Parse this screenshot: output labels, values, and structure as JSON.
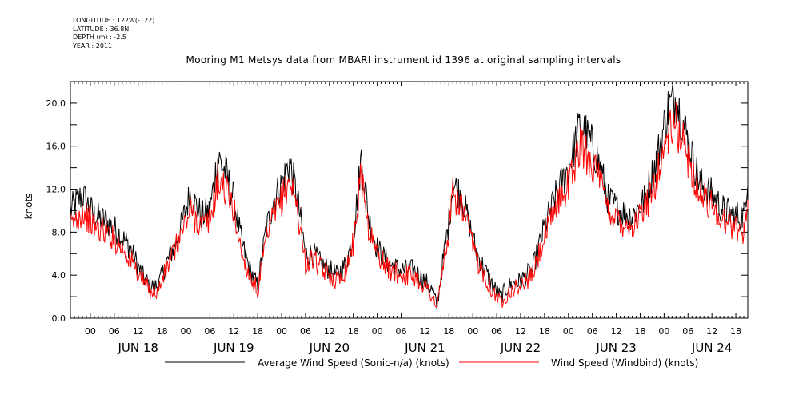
{
  "meta": {
    "longitude": "LONGITUDE : 122W(-122)",
    "latitude": "LATITUDE : 36.8N",
    "depth": "DEPTH (m) : -2.5",
    "year": "YEAR : 2011"
  },
  "chart_data": {
    "type": "line",
    "title": "Mooring M1 Metsys data from MBARI instrument id 1396 at original sampling intervals",
    "xlabel": "",
    "ylabel": "knots",
    "ylim": [
      0,
      22
    ],
    "yticks": [
      0,
      4,
      8,
      12,
      16,
      20
    ],
    "ytick_labels": [
      "0.0",
      "4.0",
      "8.0",
      "12.0",
      "16.0",
      "20.0"
    ],
    "xlim_hours": [
      -5,
      165
    ],
    "hour_ticks": [
      "00",
      "06",
      "12",
      "18",
      "00",
      "06",
      "12",
      "18",
      "00",
      "06",
      "12",
      "18",
      "00",
      "06",
      "12",
      "18",
      "00",
      "06",
      "12",
      "18",
      "00",
      "06",
      "12",
      "18",
      "00",
      "06",
      "12",
      "18"
    ],
    "day_labels": [
      "JUN 18",
      "JUN 19",
      "JUN 20",
      "JUN 21",
      "JUN 22",
      "JUN 23",
      "JUN 24"
    ],
    "grid": false,
    "legend": "bottom",
    "series": [
      {
        "name": "Average Wind Speed (Sonic-n/a) (knots)",
        "color": "#000000",
        "points": [
          [
            "JUN 17 19:00",
            10.0
          ],
          [
            "JUN 17 22:00",
            11.5
          ],
          [
            "JUN 18 01:00",
            9.5
          ],
          [
            "JUN 18 04:00",
            9.0
          ],
          [
            "JUN 18 07:00",
            8.0
          ],
          [
            "JUN 18 10:00",
            6.5
          ],
          [
            "JUN 18 13:00",
            4.0
          ],
          [
            "JUN 18 15:00",
            3.0
          ],
          [
            "JUN 18 17:00",
            3.0
          ],
          [
            "JUN 18 19:00",
            5.0
          ],
          [
            "JUN 18 22:00",
            7.5
          ],
          [
            "JUN 19 01:00",
            11.5
          ],
          [
            "JUN 19 04:00",
            9.5
          ],
          [
            "JUN 19 06:00",
            10.0
          ],
          [
            "JUN 19 08:00",
            15.0
          ],
          [
            "JUN 19 10:00",
            13.5
          ],
          [
            "JUN 19 12:00",
            11.0
          ],
          [
            "JUN 19 14:00",
            7.0
          ],
          [
            "JUN 19 16:00",
            4.5
          ],
          [
            "JUN 19 18:00",
            3.0
          ],
          [
            "JUN 19 20:00",
            8.0
          ],
          [
            "JUN 19 22:00",
            11.0
          ],
          [
            "JUN 20 00:00",
            12.5
          ],
          [
            "JUN 20 02:00",
            14.5
          ],
          [
            "JUN 20 04:00",
            11.0
          ],
          [
            "JUN 20 06:00",
            6.0
          ],
          [
            "JUN 20 08:00",
            6.0
          ],
          [
            "JUN 20 10:00",
            5.0
          ],
          [
            "JUN 20 12:00",
            4.5
          ],
          [
            "JUN 20 14:00",
            4.0
          ],
          [
            "JUN 20 16:00",
            5.0
          ],
          [
            "JUN 20 18:00",
            7.5
          ],
          [
            "JUN 20 20:00",
            15.0
          ],
          [
            "JUN 20 22:00",
            9.0
          ],
          [
            "JUN 21 00:00",
            6.5
          ],
          [
            "JUN 21 03:00",
            5.0
          ],
          [
            "JUN 21 06:00",
            4.5
          ],
          [
            "JUN 21 09:00",
            4.5
          ],
          [
            "JUN 21 12:00",
            3.5
          ],
          [
            "JUN 21 14:00",
            2.5
          ],
          [
            "JUN 21 15:00",
            1.0
          ],
          [
            "JUN 21 16:00",
            4.0
          ],
          [
            "JUN 21 18:00",
            9.0
          ],
          [
            "JUN 21 19:00",
            12.5
          ],
          [
            "JUN 21 21:00",
            11.5
          ],
          [
            "JUN 21 23:00",
            9.0
          ],
          [
            "JUN 22 01:00",
            6.0
          ],
          [
            "JUN 22 03:00",
            4.5
          ],
          [
            "JUN 22 05:00",
            3.0
          ],
          [
            "JUN 22 07:00",
            2.0
          ],
          [
            "JUN 22 09:00",
            3.0
          ],
          [
            "JUN 22 12:00",
            3.5
          ],
          [
            "JUN 22 15:00",
            4.5
          ],
          [
            "JUN 22 18:00",
            8.5
          ],
          [
            "JUN 22 21:00",
            11.5
          ],
          [
            "JUN 23 00:00",
            14.0
          ],
          [
            "JUN 23 03:00",
            18.0
          ],
          [
            "JUN 23 06:00",
            16.0
          ],
          [
            "JUN 23 08:00",
            14.0
          ],
          [
            "JUN 23 10:00",
            11.0
          ],
          [
            "JUN 23 13:00",
            10.0
          ],
          [
            "JUN 23 16:00",
            9.5
          ],
          [
            "JUN 23 19:00",
            11.0
          ],
          [
            "JUN 23 22:00",
            14.5
          ],
          [
            "JUN 24 01:00",
            19.5
          ],
          [
            "JUN 24 03:00",
            20.5
          ],
          [
            "JUN 24 06:00",
            16.5
          ],
          [
            "JUN 24 09:00",
            12.5
          ],
          [
            "JUN 24 12:00",
            11.5
          ],
          [
            "JUN 24 15:00",
            10.0
          ],
          [
            "JUN 24 18:00",
            9.5
          ],
          [
            "JUN 24 20:00",
            9.5
          ],
          [
            "JUN 24 21:00",
            13.5
          ]
        ]
      },
      {
        "name": "Wind Speed (Windbird) (knots)",
        "color": "#ff0000",
        "points": [
          [
            "JUN 17 19:00",
            8.5
          ],
          [
            "JUN 17 22:00",
            10.0
          ],
          [
            "JUN 18 01:00",
            8.5
          ],
          [
            "JUN 18 04:00",
            8.0
          ],
          [
            "JUN 18 07:00",
            7.0
          ],
          [
            "JUN 18 10:00",
            5.5
          ],
          [
            "JUN 18 13:00",
            3.5
          ],
          [
            "JUN 18 15:00",
            2.5
          ],
          [
            "JUN 18 17:00",
            2.5
          ],
          [
            "JUN 18 19:00",
            4.5
          ],
          [
            "JUN 18 22:00",
            7.0
          ],
          [
            "JUN 19 01:00",
            10.0
          ],
          [
            "JUN 19 04:00",
            8.5
          ],
          [
            "JUN 19 06:00",
            9.0
          ],
          [
            "JUN 19 08:00",
            13.0
          ],
          [
            "JUN 19 10:00",
            12.0
          ],
          [
            "JUN 19 12:00",
            10.0
          ],
          [
            "JUN 19 14:00",
            6.0
          ],
          [
            "JUN 19 16:00",
            4.0
          ],
          [
            "JUN 19 18:00",
            2.5
          ],
          [
            "JUN 19 20:00",
            7.0
          ],
          [
            "JUN 19 22:00",
            9.5
          ],
          [
            "JUN 20 00:00",
            11.0
          ],
          [
            "JUN 20 02:00",
            13.0
          ],
          [
            "JUN 20 04:00",
            10.0
          ],
          [
            "JUN 20 06:00",
            5.0
          ],
          [
            "JUN 20 08:00",
            5.5
          ],
          [
            "JUN 20 10:00",
            4.5
          ],
          [
            "JUN 20 12:00",
            4.0
          ],
          [
            "JUN 20 14:00",
            3.5
          ],
          [
            "JUN 20 16:00",
            4.5
          ],
          [
            "JUN 20 18:00",
            7.0
          ],
          [
            "JUN 20 20:00",
            13.5
          ],
          [
            "JUN 20 22:00",
            8.0
          ],
          [
            "JUN 21 00:00",
            6.0
          ],
          [
            "JUN 21 03:00",
            4.5
          ],
          [
            "JUN 21 06:00",
            4.0
          ],
          [
            "JUN 21 09:00",
            4.0
          ],
          [
            "JUN 21 12:00",
            3.0
          ],
          [
            "JUN 21 14:00",
            2.0
          ],
          [
            "JUN 21 15:00",
            0.8
          ],
          [
            "JUN 21 16:00",
            3.5
          ],
          [
            "JUN 21 18:00",
            8.0
          ],
          [
            "JUN 21 19:00",
            11.5
          ],
          [
            "JUN 21 21:00",
            10.5
          ],
          [
            "JUN 21 23:00",
            8.0
          ],
          [
            "JUN 22 01:00",
            5.5
          ],
          [
            "JUN 22 03:00",
            4.0
          ],
          [
            "JUN 22 05:00",
            2.5
          ],
          [
            "JUN 22 07:00",
            1.5
          ],
          [
            "JUN 22 09:00",
            2.5
          ],
          [
            "JUN 22 12:00",
            3.0
          ],
          [
            "JUN 22 15:00",
            4.0
          ],
          [
            "JUN 22 18:00",
            7.5
          ],
          [
            "JUN 22 21:00",
            10.5
          ],
          [
            "JUN 23 00:00",
            12.5
          ],
          [
            "JUN 23 03:00",
            16.0
          ],
          [
            "JUN 23 06:00",
            14.5
          ],
          [
            "JUN 23 08:00",
            12.5
          ],
          [
            "JUN 23 10:00",
            10.0
          ],
          [
            "JUN 23 13:00",
            9.0
          ],
          [
            "JUN 23 16:00",
            8.5
          ],
          [
            "JUN 23 19:00",
            10.0
          ],
          [
            "JUN 23 22:00",
            13.0
          ],
          [
            "JUN 24 01:00",
            17.0
          ],
          [
            "JUN 24 03:00",
            18.0
          ],
          [
            "JUN 24 06:00",
            15.0
          ],
          [
            "JUN 24 09:00",
            11.5
          ],
          [
            "JUN 24 12:00",
            10.5
          ],
          [
            "JUN 24 15:00",
            9.0
          ],
          [
            "JUN 24 18:00",
            8.5
          ],
          [
            "JUN 24 20:00",
            8.0
          ],
          [
            "JUN 24 21:00",
            11.0
          ]
        ]
      }
    ]
  }
}
